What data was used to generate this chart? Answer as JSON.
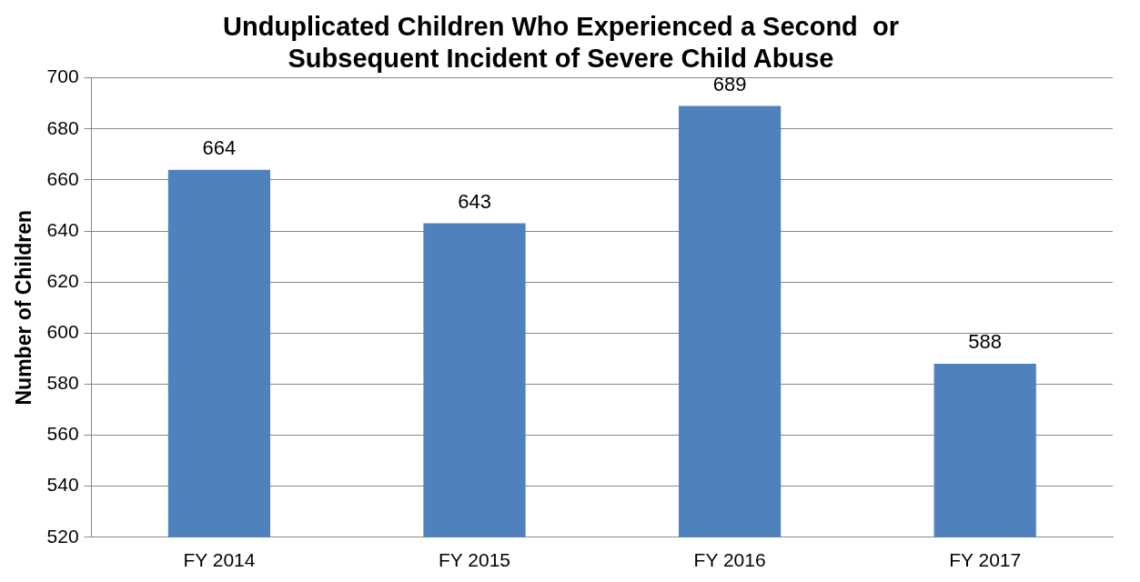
{
  "chart_data": {
    "type": "bar",
    "title": "Unduplicated Children Who Experienced a Second  or\nSubsequent Incident of Severe Child Abuse",
    "ylabel": "Number of Children",
    "categories": [
      "FY 2014",
      "FY 2015",
      "FY 2016",
      "FY 2017"
    ],
    "values": [
      664,
      643,
      689,
      588
    ],
    "color": "#4f81bd",
    "ylim": [
      520,
      700
    ],
    "yticks": [
      520,
      540,
      560,
      580,
      600,
      620,
      640,
      660,
      680,
      700
    ],
    "grid": "y",
    "legend": false,
    "data_labels": true
  }
}
